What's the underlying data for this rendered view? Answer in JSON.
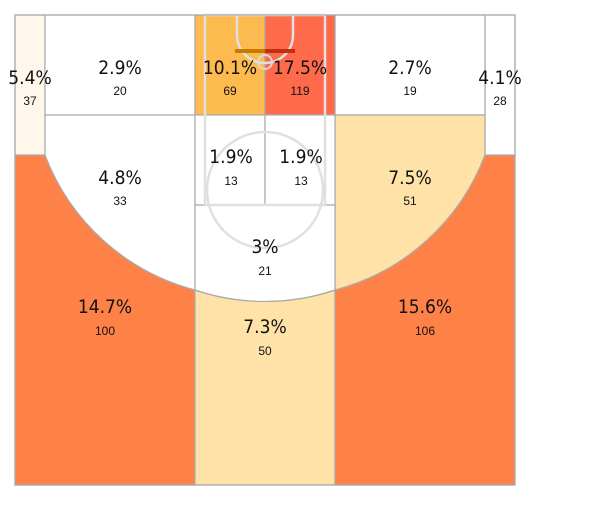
{
  "chart_data": {
    "type": "heatmap",
    "title": "",
    "zones": [
      {
        "id": "left-corner-3",
        "pct": "5.4%",
        "count": 37,
        "color": "#fff7ec"
      },
      {
        "id": "left-baseline-mid",
        "pct": "2.9%",
        "count": 20,
        "color": "#ffffff"
      },
      {
        "id": "restricted-left",
        "pct": "10.1%",
        "count": 69,
        "color": "#fdbb4f"
      },
      {
        "id": "restricted-right",
        "pct": "17.5%",
        "count": 119,
        "color": "#ff6a4b"
      },
      {
        "id": "right-baseline-mid",
        "pct": "2.7%",
        "count": 19,
        "color": "#ffffff"
      },
      {
        "id": "right-corner-3",
        "pct": "4.1%",
        "count": 28,
        "color": "#ffffff"
      },
      {
        "id": "left-wing-mid",
        "pct": "4.8%",
        "count": 33,
        "color": "#ffffff"
      },
      {
        "id": "paint-left",
        "pct": "1.9%",
        "count": 13,
        "color": "#ffffff"
      },
      {
        "id": "paint-right",
        "pct": "1.9%",
        "count": 13,
        "color": "#ffffff"
      },
      {
        "id": "right-wing-mid",
        "pct": "7.5%",
        "count": 51,
        "color": "#fee2a8"
      },
      {
        "id": "top-key-mid",
        "pct": "3%",
        "count": 21,
        "color": "#ffffff"
      },
      {
        "id": "left-wing-3",
        "pct": "14.7%",
        "count": 100,
        "color": "#fe8148"
      },
      {
        "id": "top-3",
        "pct": "7.3%",
        "count": 50,
        "color": "#fee2a8"
      },
      {
        "id": "right-wing-3",
        "pct": "15.6%",
        "count": 106,
        "color": "#fe8148"
      }
    ]
  }
}
